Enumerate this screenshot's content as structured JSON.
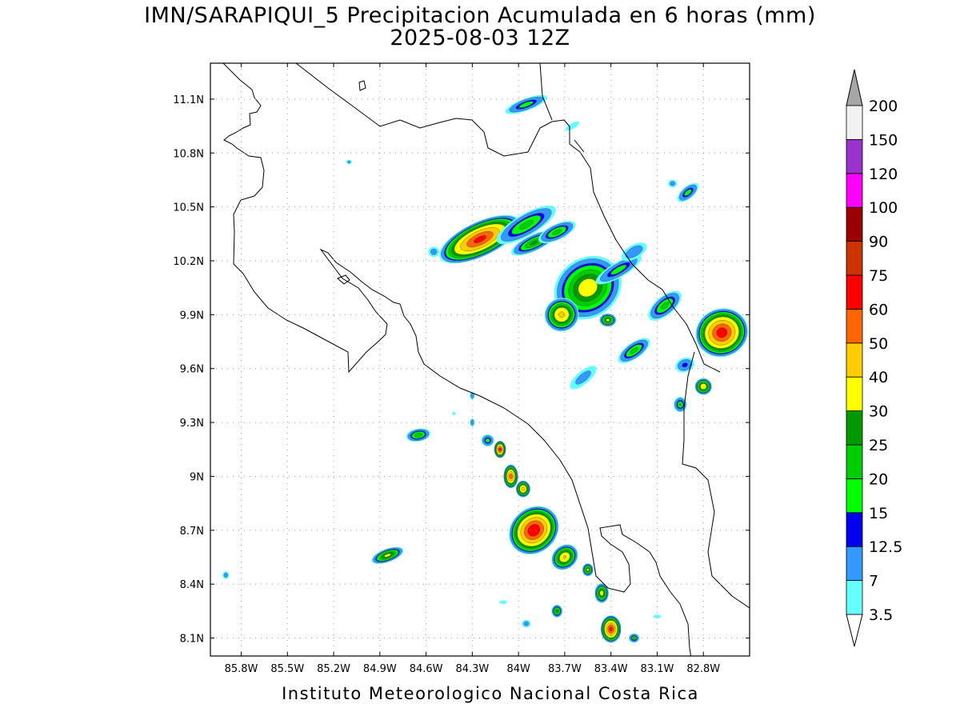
{
  "title": "IMN/SARAPIQUI_5 Precipitacion Acumulada en 6 horas (mm)",
  "subtitle": "2025-08-03 12Z",
  "footer": "Instituto Meteorologico Nacional Costa Rica",
  "map": {
    "lon_range": [
      -86.0,
      -82.5
    ],
    "lat_range": [
      8.0,
      11.3
    ],
    "lon_ticks": [
      {
        "value": -85.8,
        "label": "85.8W"
      },
      {
        "value": -85.5,
        "label": "85.5W"
      },
      {
        "value": -85.2,
        "label": "85.2W"
      },
      {
        "value": -84.9,
        "label": "84.9W"
      },
      {
        "value": -84.6,
        "label": "84.6W"
      },
      {
        "value": -84.3,
        "label": "84.3W"
      },
      {
        "value": -84.0,
        "label": "84W"
      },
      {
        "value": -83.7,
        "label": "83.7W"
      },
      {
        "value": -83.4,
        "label": "83.4W"
      },
      {
        "value": -83.1,
        "label": "83.1W"
      },
      {
        "value": -82.8,
        "label": "82.8W"
      }
    ],
    "lat_ticks": [
      {
        "value": 8.1,
        "label": "8.1N"
      },
      {
        "value": 8.4,
        "label": "8.4N"
      },
      {
        "value": 8.7,
        "label": "8.7N"
      },
      {
        "value": 9.0,
        "label": "9N"
      },
      {
        "value": 9.3,
        "label": "9.3N"
      },
      {
        "value": 9.6,
        "label": "9.6N"
      },
      {
        "value": 9.9,
        "label": "9.9N"
      },
      {
        "value": 10.2,
        "label": "10.2N"
      },
      {
        "value": 10.5,
        "label": "10.5N"
      },
      {
        "value": 10.8,
        "label": "10.8N"
      },
      {
        "value": 11.1,
        "label": "11.1N"
      }
    ],
    "gridlines": true
  },
  "colorbar": {
    "levels": [
      {
        "label": "3.5",
        "color": "#66ffff"
      },
      {
        "label": "7",
        "color": "#3399ff"
      },
      {
        "label": "12.5",
        "color": "#0000ee"
      },
      {
        "label": "15",
        "color": "#00ff00"
      },
      {
        "label": "20",
        "color": "#00cc00"
      },
      {
        "label": "25",
        "color": "#009900"
      },
      {
        "label": "30",
        "color": "#ffff00"
      },
      {
        "label": "40",
        "color": "#ffcc00"
      },
      {
        "label": "50",
        "color": "#ff6600"
      },
      {
        "label": "60",
        "color": "#ff0000"
      },
      {
        "label": "75",
        "color": "#cc3300"
      },
      {
        "label": "90",
        "color": "#990000"
      },
      {
        "label": "100",
        "color": "#ff00ff"
      },
      {
        "label": "120",
        "color": "#9933cc"
      },
      {
        "label": "150",
        "color": "#f2f2f2"
      },
      {
        "label": "200",
        "color": "#a6a6a6"
      }
    ],
    "top_arrow_color": "#a6a6a6",
    "bottom_arrow_color": "#ffffff"
  },
  "precip_cells": [
    {
      "lon": -84.25,
      "lat": 10.32,
      "rx": 0.3,
      "ry": 0.1,
      "rot": -25,
      "max": 62
    },
    {
      "lon": -83.95,
      "lat": 10.4,
      "rx": 0.25,
      "ry": 0.07,
      "rot": -30,
      "max": 22
    },
    {
      "lon": -83.9,
      "lat": 10.3,
      "rx": 0.18,
      "ry": 0.05,
      "rot": -25,
      "max": 26
    },
    {
      "lon": -83.75,
      "lat": 10.36,
      "rx": 0.15,
      "ry": 0.05,
      "rot": -25,
      "max": 22
    },
    {
      "lon": -83.95,
      "lat": 11.07,
      "rx": 0.17,
      "ry": 0.04,
      "rot": -20,
      "max": 18
    },
    {
      "lon": -83.55,
      "lat": 10.05,
      "rx": 0.25,
      "ry": 0.18,
      "rot": -35,
      "max": 35
    },
    {
      "lon": -83.72,
      "lat": 9.9,
      "rx": 0.12,
      "ry": 0.1,
      "rot": -30,
      "max": 42
    },
    {
      "lon": -83.35,
      "lat": 10.15,
      "rx": 0.2,
      "ry": 0.05,
      "rot": -30,
      "max": 18
    },
    {
      "lon": -83.25,
      "lat": 10.25,
      "rx": 0.12,
      "ry": 0.05,
      "rot": -30,
      "max": 12
    },
    {
      "lon": -83.05,
      "lat": 9.95,
      "rx": 0.15,
      "ry": 0.06,
      "rot": -40,
      "max": 22
    },
    {
      "lon": -83.25,
      "lat": 9.7,
      "rx": 0.14,
      "ry": 0.05,
      "rot": -35,
      "max": 22
    },
    {
      "lon": -83.42,
      "lat": 9.87,
      "rx": 0.06,
      "ry": 0.04,
      "rot": 0,
      "max": 32
    },
    {
      "lon": -82.68,
      "lat": 9.8,
      "rx": 0.18,
      "ry": 0.14,
      "rot": -20,
      "max": 65
    },
    {
      "lon": -82.8,
      "lat": 9.5,
      "rx": 0.06,
      "ry": 0.05,
      "rot": 0,
      "max": 38
    },
    {
      "lon": -82.95,
      "lat": 9.4,
      "rx": 0.05,
      "ry": 0.05,
      "rot": 0,
      "max": 20
    },
    {
      "lon": -82.9,
      "lat": 10.58,
      "rx": 0.1,
      "ry": 0.04,
      "rot": -40,
      "max": 18
    },
    {
      "lon": -83.9,
      "lat": 8.7,
      "rx": 0.18,
      "ry": 0.13,
      "rot": -40,
      "max": 68
    },
    {
      "lon": -83.7,
      "lat": 8.55,
      "rx": 0.1,
      "ry": 0.07,
      "rot": -40,
      "max": 40
    },
    {
      "lon": -84.05,
      "lat": 9.0,
      "rx": 0.05,
      "ry": 0.07,
      "rot": 0,
      "max": 55
    },
    {
      "lon": -84.12,
      "lat": 9.15,
      "rx": 0.04,
      "ry": 0.05,
      "rot": 0,
      "max": 62
    },
    {
      "lon": -84.2,
      "lat": 9.2,
      "rx": 0.05,
      "ry": 0.04,
      "rot": 0,
      "max": 18
    },
    {
      "lon": -83.97,
      "lat": 8.93,
      "rx": 0.05,
      "ry": 0.05,
      "rot": 0,
      "max": 45
    },
    {
      "lon": -84.85,
      "lat": 8.56,
      "rx": 0.12,
      "ry": 0.04,
      "rot": -20,
      "max": 32
    },
    {
      "lon": -84.65,
      "lat": 9.23,
      "rx": 0.09,
      "ry": 0.04,
      "rot": -10,
      "max": 24
    },
    {
      "lon": -83.4,
      "lat": 8.15,
      "rx": 0.07,
      "ry": 0.08,
      "rot": 0,
      "max": 62
    },
    {
      "lon": -83.46,
      "lat": 8.35,
      "rx": 0.05,
      "ry": 0.06,
      "rot": 0,
      "max": 34
    },
    {
      "lon": -83.55,
      "lat": 8.48,
      "rx": 0.04,
      "ry": 0.04,
      "rot": 0,
      "max": 30
    },
    {
      "lon": -83.75,
      "lat": 8.25,
      "rx": 0.04,
      "ry": 0.04,
      "rot": 0,
      "max": 26
    },
    {
      "lon": -83.25,
      "lat": 8.1,
      "rx": 0.04,
      "ry": 0.03,
      "rot": 0,
      "max": 20
    },
    {
      "lon": -85.9,
      "lat": 8.45,
      "rx": 0.03,
      "ry": 0.03,
      "rot": 0,
      "max": 10
    },
    {
      "lon": -84.55,
      "lat": 10.25,
      "rx": 0.05,
      "ry": 0.04,
      "rot": 0,
      "max": 10
    },
    {
      "lon": -84.3,
      "lat": 9.45,
      "rx": 0.02,
      "ry": 0.03,
      "rot": 0,
      "max": 12
    },
    {
      "lon": -84.3,
      "lat": 9.3,
      "rx": 0.02,
      "ry": 0.03,
      "rot": 0,
      "max": 12
    },
    {
      "lon": -84.42,
      "lat": 9.35,
      "rx": 0.02,
      "ry": 0.02,
      "rot": 0,
      "max": 6
    },
    {
      "lon": -85.1,
      "lat": 10.75,
      "rx": 0.03,
      "ry": 0.02,
      "rot": 0,
      "max": 8
    },
    {
      "lon": -83.0,
      "lat": 10.63,
      "rx": 0.04,
      "ry": 0.03,
      "rot": 0,
      "max": 10
    },
    {
      "lon": -83.1,
      "lat": 8.22,
      "rx": 0.05,
      "ry": 0.02,
      "rot": 0,
      "max": 6
    },
    {
      "lon": -83.65,
      "lat": 10.95,
      "rx": 0.1,
      "ry": 0.03,
      "rot": -30,
      "max": 6
    },
    {
      "lon": -84.1,
      "lat": 8.3,
      "rx": 0.05,
      "ry": 0.02,
      "rot": 0,
      "max": 6
    },
    {
      "lon": -83.95,
      "lat": 8.18,
      "rx": 0.04,
      "ry": 0.03,
      "rot": 0,
      "max": 10
    },
    {
      "lon": -83.58,
      "lat": 9.55,
      "rx": 0.15,
      "ry": 0.05,
      "rot": -40,
      "max": 10
    },
    {
      "lon": -82.92,
      "lat": 9.62,
      "rx": 0.08,
      "ry": 0.05,
      "rot": -20,
      "max": 14
    }
  ]
}
